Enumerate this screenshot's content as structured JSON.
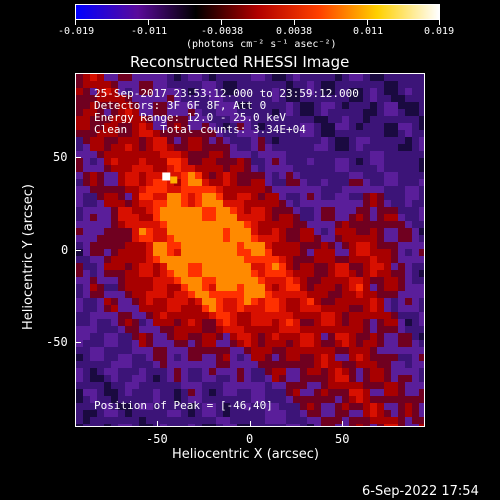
{
  "colorbar": {
    "tick_labels": [
      "-0.019",
      "-0.011",
      "-0.0038",
      "0.0038",
      "0.011",
      "0.019"
    ],
    "unit_label": "(photons cm⁻² s⁻¹ asec⁻²)",
    "colors": [
      "#0000ff",
      "#5a0a9a",
      "#000000",
      "#b00000",
      "#ff4000",
      "#ffd000",
      "#ffffff"
    ]
  },
  "title": "Reconstructed RHESSI Image",
  "info": {
    "line1": "25-Sep-2017 23:53:12.000 to 23:59:12.000",
    "line2": "Detectors: 3F 6F 8F, Att 0",
    "line3": "Energy Range: 12.0 - 25.0 keV",
    "line4": "Clean     Total counts: 3.34E+04"
  },
  "peak_text": "Position of Peak = [-46,40]",
  "x_axis": {
    "label": "Heliocentric X (arcsec)",
    "ticks": [
      "-50",
      "0",
      "50"
    ]
  },
  "y_axis": {
    "label": "Heliocentric Y (arcsec)",
    "ticks": [
      "50",
      "0",
      "-50"
    ]
  },
  "footer_date": "6-Sep-2022 17:54",
  "chart_data": {
    "type": "heatmap",
    "title": "Reconstructed RHESSI Image",
    "xlabel": "Heliocentric X (arcsec)",
    "ylabel": "Heliocentric Y (arcsec)",
    "xlim": [
      -95,
      95
    ],
    "ylim": [
      -95,
      95
    ],
    "colorbar_range": [
      -0.019,
      0.019
    ],
    "peak": {
      "x": -46,
      "y": 40
    }
  }
}
